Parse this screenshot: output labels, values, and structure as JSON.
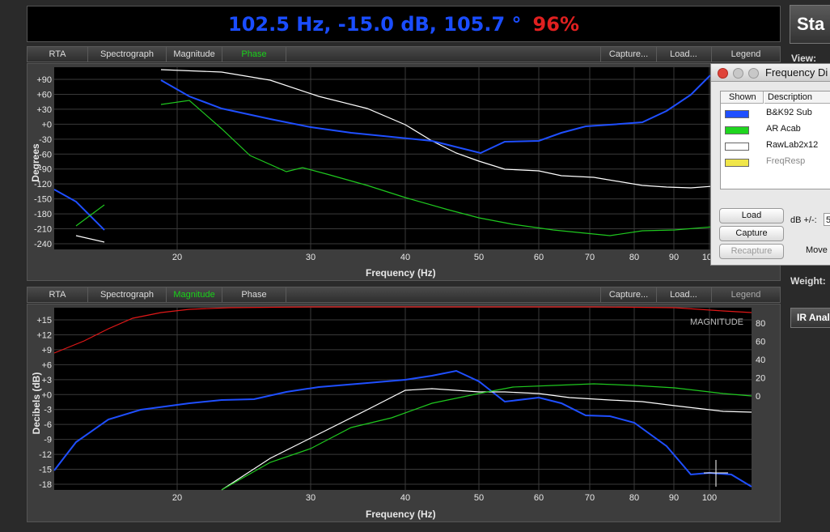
{
  "readout": {
    "value": "102.5 Hz, -15.0 dB, 105.7 °",
    "percent": "96%"
  },
  "toolbar_top": {
    "rta": "RTA",
    "spectrograph": "Spectrograph",
    "magnitude": "Magnitude",
    "phase": "Phase",
    "capture": "Capture...",
    "load": "Load...",
    "legend": "Legend"
  },
  "toolbar_bottom": {
    "rta": "RTA",
    "spectrograph": "Spectrograph",
    "magnitude": "Magnitude",
    "phase": "Phase",
    "capture": "Capture...",
    "load": "Load...",
    "legend": "Legend"
  },
  "phase_graph": {
    "ylabel": "Degrees",
    "xlabel": "Frequency (Hz)",
    "yticks": [
      "+90",
      "+60",
      "+30",
      "+0",
      "-30",
      "-60",
      "-90",
      "-120",
      "-150",
      "-180",
      "-210",
      "-240"
    ],
    "xticks": [
      "20",
      "30",
      "40",
      "50",
      "60",
      "70",
      "80",
      "90",
      "100"
    ]
  },
  "magnitude_graph": {
    "ylabel": "Decibels (dB)",
    "xlabel": "Frequency (Hz)",
    "watermark": "MAGNITUDE",
    "yticks": [
      "+15",
      "+12",
      "+9",
      "+6",
      "+3",
      "+0",
      "-3",
      "-6",
      "-9",
      "-12",
      "-15",
      "-18"
    ],
    "yticks_right": [
      "80",
      "60",
      "40",
      "20",
      "0"
    ],
    "xticks": [
      "20",
      "30",
      "40",
      "50",
      "60",
      "70",
      "80",
      "90",
      "100"
    ]
  },
  "colors": {
    "bk92": "#1f4fff",
    "aracab": "#1fc81f",
    "rawlab": "#ffffff",
    "freqresp": "#f0e64a",
    "coherence": "#e01818"
  },
  "dialog": {
    "title": "Frequency Di",
    "col_shown": "Shown",
    "col_desc": "Description",
    "rows": [
      {
        "label": "B&K92 Sub",
        "color": "#1f4fff"
      },
      {
        "label": "AR Acab",
        "color": "#1fd51f"
      },
      {
        "label": "RawLab2x12",
        "color": "#ffffff"
      },
      {
        "label": "FreqResp",
        "color": "#f0e64a"
      }
    ],
    "load": "Load",
    "capture": "Capture",
    "recapture": "Recapture",
    "db_label": "dB +/-:",
    "db_value": "5",
    "move": "Move"
  },
  "side": {
    "start": "Sta",
    "view": "View:",
    "weight": "Weight:",
    "ir": "IR Anal"
  }
}
